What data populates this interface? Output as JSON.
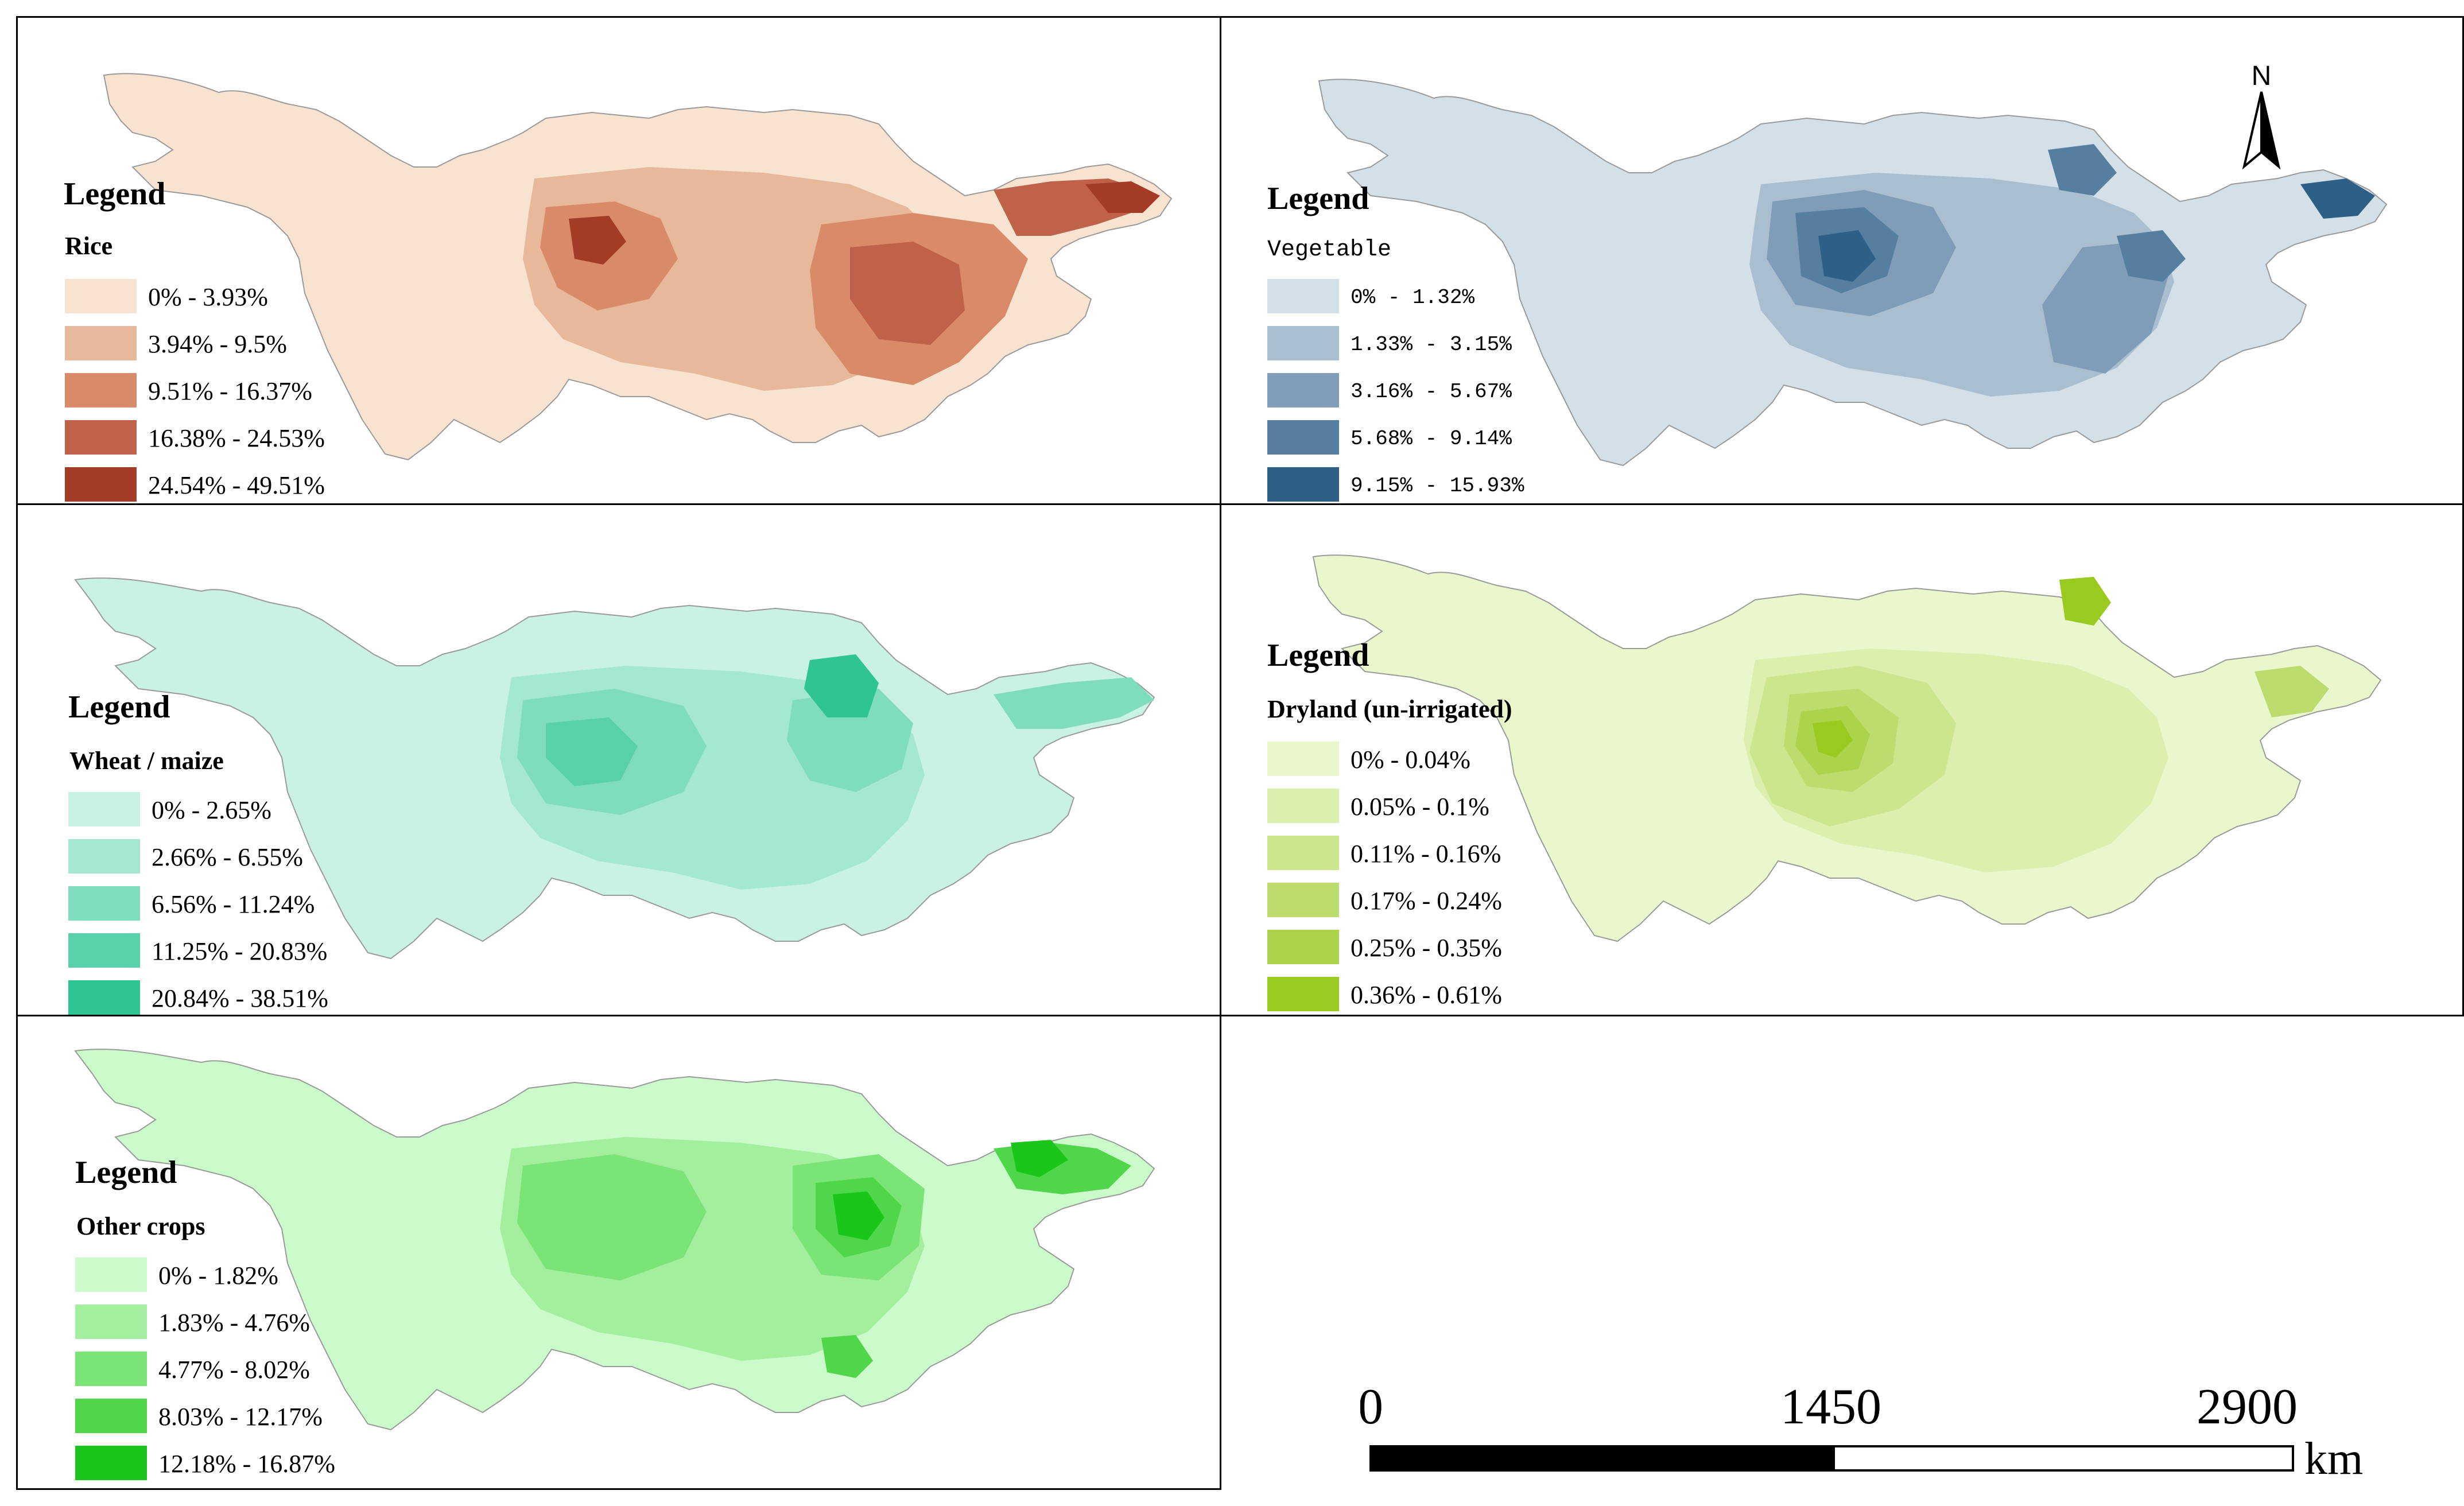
{
  "panels": {
    "rice": {
      "legend_title": "Legend",
      "subtitle": "Rice",
      "classes": [
        {
          "label": "0% - 3.93%",
          "color": "#f8e3d1"
        },
        {
          "label": "3.94% - 9.5%",
          "color": "#e8b89b"
        },
        {
          "label": "9.51% - 16.37%",
          "color": "#d98b69"
        },
        {
          "label": "16.38% - 24.53%",
          "color": "#c0614a"
        },
        {
          "label": "24.54% - 49.51%",
          "color": "#a33b26"
        }
      ]
    },
    "vegetable": {
      "legend_title": "Legend",
      "subtitle": "Vegetable",
      "classes": [
        {
          "label": "0% - 1.32%",
          "color": "#d3e0e8"
        },
        {
          "label": "1.33% - 3.15%",
          "color": "#a9bfcf"
        },
        {
          "label": "3.16% - 5.67%",
          "color": "#7f9db8"
        },
        {
          "label": "5.68% - 9.14%",
          "color": "#557e9f"
        },
        {
          "label": "9.15% - 15.93%",
          "color": "#2d5f87"
        }
      ]
    },
    "wheat": {
      "legend_title": "Legend",
      "subtitle": "Wheat / maize",
      "classes": [
        {
          "label": "0% - 2.65%",
          "color": "#c9f1e6"
        },
        {
          "label": "2.66% - 6.55%",
          "color": "#a4e7d2"
        },
        {
          "label": "6.56% - 11.24%",
          "color": "#7fdcbe"
        },
        {
          "label": "11.25% - 20.83%",
          "color": "#58d0a9"
        },
        {
          "label": "20.84% - 38.51%",
          "color": "#2ec493"
        }
      ]
    },
    "dryland": {
      "legend_title": "Legend",
      "subtitle": "Dryland (un-irrigated)",
      "classes": [
        {
          "label": "0% - 0.04%",
          "color": "#eaf6cc"
        },
        {
          "label": "0.05% - 0.1%",
          "color": "#dcefae"
        },
        {
          "label": "0.11% - 0.16%",
          "color": "#cce68e"
        },
        {
          "label": "0.17% - 0.24%",
          "color": "#bcdd6d"
        },
        {
          "label": "0.25% - 0.35%",
          "color": "#abd44c"
        },
        {
          "label": "0.36% - 0.61%",
          "color": "#9ac91f"
        }
      ]
    },
    "other": {
      "legend_title": "Legend",
      "subtitle": "Other crops",
      "classes": [
        {
          "label": "0% - 1.82%",
          "color": "#cbfbcb"
        },
        {
          "label": "1.83% - 4.76%",
          "color": "#a3ef9e"
        },
        {
          "label": "4.77% - 8.02%",
          "color": "#7be477"
        },
        {
          "label": "8.03% - 12.17%",
          "color": "#4fd64a"
        },
        {
          "label": "12.18% - 16.87%",
          "color": "#19c619"
        }
      ]
    }
  },
  "north_arrow": {
    "label": "N"
  },
  "scale_bar": {
    "ticks": [
      "0",
      "1450",
      "2900"
    ],
    "unit": "km"
  }
}
